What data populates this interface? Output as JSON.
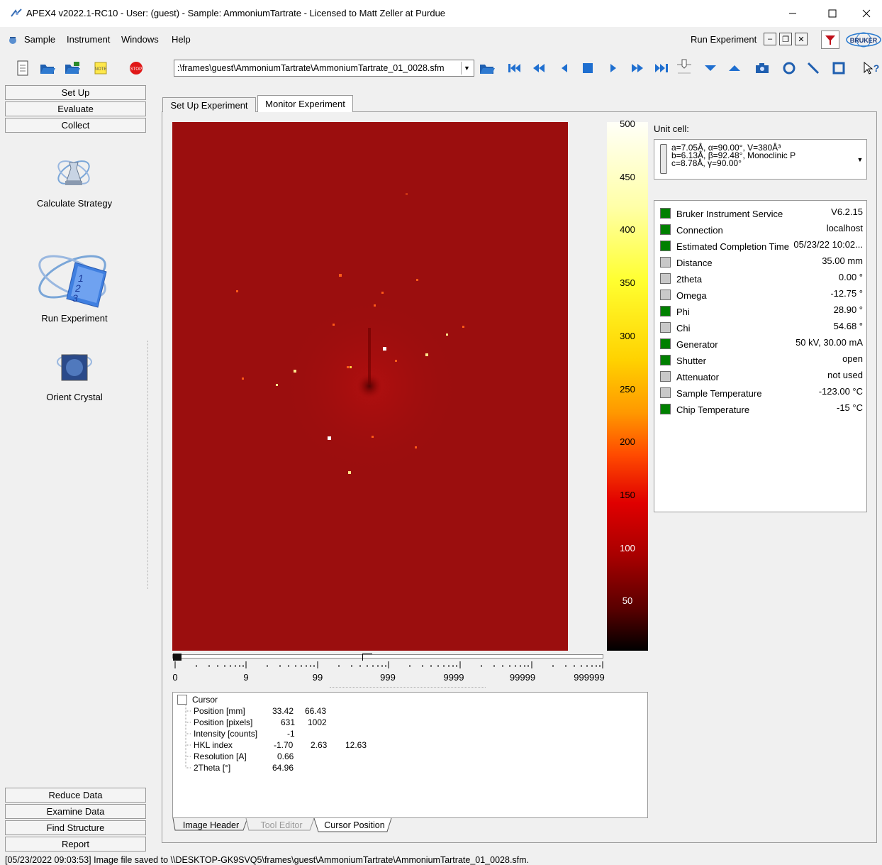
{
  "window": {
    "title": "APEX4 v2022.1-RC10 - User: (guest) - Sample: AmmoniumTartrate - Licensed to Matt Zeller at Purdue"
  },
  "menu": {
    "items": [
      "Sample",
      "Instrument",
      "Windows",
      "Help"
    ],
    "run_experiment": "Run Experiment"
  },
  "toolbar": {
    "path": ":\\frames\\guest\\AmmoniumTartrate\\AmmoniumTartrate_01_0028.sfm"
  },
  "left": {
    "top_buttons": [
      "Set Up",
      "Evaluate",
      "Collect"
    ],
    "tools": [
      "Calculate Strategy",
      "Run Experiment",
      "Orient Crystal"
    ],
    "bottom_buttons": [
      "Reduce Data",
      "Examine Data",
      "Find Structure",
      "Report"
    ]
  },
  "tabs": [
    "Set Up Experiment",
    "Monitor Experiment"
  ],
  "colorbar": {
    "ticks": [
      "500",
      "450",
      "400",
      "350",
      "300",
      "250",
      "200",
      "150",
      "100",
      "50"
    ]
  },
  "unit_cell": {
    "label": "Unit cell:",
    "lines": [
      "a=7.05Å,  α=90.00°,  V=380Å³",
      "b=6.13Å,  β=92.48°,  Monoclinic P",
      "c=8.78Å,  γ=90.00°"
    ]
  },
  "status": [
    {
      "name": "Bruker Instrument Service",
      "value": "V6.2.15",
      "color": "#008000"
    },
    {
      "name": "Connection",
      "value": "localhost",
      "color": "#008000"
    },
    {
      "name": "Estimated Completion Time",
      "value": "05/23/22 10:02...",
      "color": "#008000"
    },
    {
      "name": "Distance",
      "value": "35.00 mm",
      "color": "#c8c8c8"
    },
    {
      "name": "2theta",
      "value": "0.00 °",
      "color": "#c8c8c8"
    },
    {
      "name": "Omega",
      "value": "-12.75 °",
      "color": "#c8c8c8"
    },
    {
      "name": "Phi",
      "value": "28.90 °",
      "color": "#008000"
    },
    {
      "name": "Chi",
      "value": "54.68 °",
      "color": "#c8c8c8"
    },
    {
      "name": "Generator",
      "value": "50 kV, 30.00 mA",
      "color": "#008000"
    },
    {
      "name": "Shutter",
      "value": "open",
      "color": "#008000"
    },
    {
      "name": "Attenuator",
      "value": "not used",
      "color": "#c8c8c8"
    },
    {
      "name": "Sample Temperature",
      "value": "-123.00 °C",
      "color": "#c8c8c8"
    },
    {
      "name": "Chip Temperature",
      "value": "-15 °C",
      "color": "#008000"
    }
  ],
  "slider": {
    "labels": [
      "0",
      "9",
      "99",
      "999",
      "9999",
      "99999",
      "999999"
    ]
  },
  "cursor": {
    "title": "Cursor",
    "rows": [
      {
        "label": "Position [mm]",
        "values": [
          "33.42",
          "66.43"
        ]
      },
      {
        "label": "Position [pixels]",
        "values": [
          "631",
          "1002"
        ]
      },
      {
        "label": "Intensity [counts]",
        "values": [
          "-1"
        ]
      },
      {
        "label": "HKL index",
        "values": [
          "-1.70",
          "2.63",
          "12.63"
        ]
      },
      {
        "label": "Resolution [A]",
        "values": [
          "0.66"
        ]
      },
      {
        "label": "2Theta [°]",
        "values": [
          "64.96"
        ]
      }
    ]
  },
  "bottom_tabs": [
    "Image Header",
    "Tool Editor",
    "Cursor Position"
  ],
  "statusbar": {
    "message": "[05/23/2022 09:03:53] Image file saved to \\\\DESKTOP-GK9SVQ5\\frames\\guest\\AmmoniumTartrate\\AmmoniumTartrate_01_0028.sfm."
  }
}
